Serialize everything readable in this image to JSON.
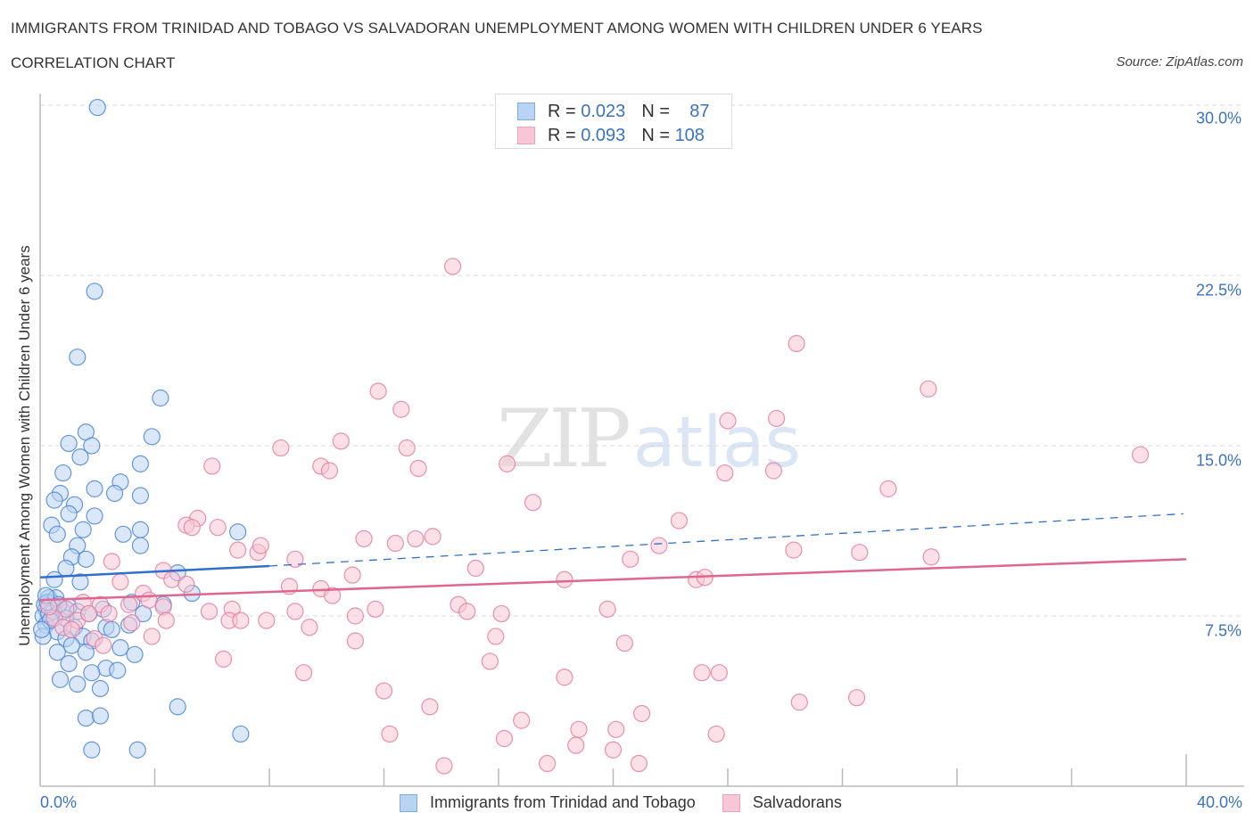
{
  "header": {
    "title": "IMMIGRANTS FROM TRINIDAD AND TOBAGO VS SALVADORAN UNEMPLOYMENT AMONG WOMEN WITH CHILDREN UNDER 6 YEARS",
    "subtitle": "CORRELATION CHART",
    "source": "Source: ZipAtlas.com"
  },
  "watermark": {
    "zip": "ZIP",
    "atlas": "atlas"
  },
  "legend_top": {
    "rows": [
      {
        "r_label": "R =",
        "r_value": "0.023",
        "n_label": "N =",
        "n_value": "87"
      },
      {
        "r_label": "R =",
        "r_value": "0.093",
        "n_label": "N =",
        "n_value": "108"
      }
    ]
  },
  "legend_bottom": {
    "items": [
      {
        "label": "Immigrants from Trinidad and Tobago"
      },
      {
        "label": "Salvadorans"
      }
    ]
  },
  "axes": {
    "y_label": "Unemployment Among Women with Children Under 6 years",
    "y_ticks": [
      "30.0%",
      "22.5%",
      "15.0%",
      "7.5%"
    ],
    "x_ticks": [
      "0.0%",
      "40.0%"
    ]
  },
  "colors": {
    "blue_fill": "#b9d3f3",
    "blue_stroke": "#4a86d8",
    "blue_line": "#2f6fd0",
    "pink_fill": "#f8c6d6",
    "pink_stroke": "#e57ea0",
    "pink_line": "#e06690",
    "tick_text": "#3b73c4",
    "grid": "#d8d8d8"
  },
  "chart_data": {
    "type": "scatter",
    "title": "IMMIGRANTS FROM TRINIDAD AND TOBAGO VS SALVADORAN UNEMPLOYMENT AMONG WOMEN WITH CHILDREN UNDER 6 YEARS",
    "subtitle": "CORRELATION CHART",
    "xlabel": "",
    "ylabel": "Unemployment Among Women with Children Under 6 years",
    "xlim": [
      0,
      40
    ],
    "ylim": [
      0,
      30
    ],
    "x_ticks": [
      "0.0%",
      "40.0%"
    ],
    "y_ticks": [
      "7.5%",
      "15.0%",
      "22.5%",
      "30.0%"
    ],
    "grid": true,
    "legend_position": "bottom",
    "series": [
      {
        "name": "Immigrants from Trinidad and Tobago",
        "R": 0.023,
        "N": 87,
        "trend": {
          "x0": 0,
          "y0": 9.2,
          "x1": 8,
          "y1": 9.7,
          "dashed_extension_to_x": 40,
          "dashed_end_y": 12.0
        },
        "points": [
          [
            2.0,
            29.9
          ],
          [
            1.9,
            21.8
          ],
          [
            1.3,
            18.9
          ],
          [
            4.2,
            17.1
          ],
          [
            3.9,
            15.4
          ],
          [
            1.6,
            15.6
          ],
          [
            1.0,
            15.1
          ],
          [
            1.8,
            15.0
          ],
          [
            1.4,
            14.5
          ],
          [
            3.5,
            14.2
          ],
          [
            0.8,
            13.8
          ],
          [
            2.8,
            13.4
          ],
          [
            0.7,
            12.9
          ],
          [
            1.9,
            13.1
          ],
          [
            2.6,
            12.9
          ],
          [
            3.5,
            12.8
          ],
          [
            0.5,
            12.6
          ],
          [
            1.2,
            12.4
          ],
          [
            1.0,
            12.0
          ],
          [
            1.9,
            11.9
          ],
          [
            0.4,
            11.5
          ],
          [
            0.6,
            11.1
          ],
          [
            1.5,
            11.3
          ],
          [
            3.5,
            11.3
          ],
          [
            2.9,
            11.1
          ],
          [
            6.9,
            11.2
          ],
          [
            1.3,
            10.6
          ],
          [
            3.5,
            10.6
          ],
          [
            1.1,
            10.1
          ],
          [
            1.6,
            10.0
          ],
          [
            0.9,
            9.6
          ],
          [
            4.8,
            9.4
          ],
          [
            0.5,
            9.1
          ],
          [
            1.4,
            9.0
          ],
          [
            5.3,
            8.5
          ],
          [
            0.3,
            8.3
          ],
          [
            0.4,
            8.1
          ],
          [
            0.2,
            7.8
          ],
          [
            0.5,
            7.9
          ],
          [
            0.8,
            7.7
          ],
          [
            1.0,
            7.9
          ],
          [
            1.3,
            7.7
          ],
          [
            0.1,
            7.5
          ],
          [
            0.4,
            7.4
          ],
          [
            0.9,
            7.4
          ],
          [
            1.7,
            7.6
          ],
          [
            2.2,
            7.8
          ],
          [
            3.2,
            8.1
          ],
          [
            3.6,
            7.6
          ],
          [
            4.3,
            8.0
          ],
          [
            0.2,
            7.1
          ],
          [
            0.6,
            6.8
          ],
          [
            1.2,
            7.0
          ],
          [
            2.3,
            7.0
          ],
          [
            3.1,
            7.1
          ],
          [
            0.1,
            6.6
          ],
          [
            0.9,
            6.5
          ],
          [
            1.5,
            6.6
          ],
          [
            2.5,
            6.9
          ],
          [
            1.1,
            6.2
          ],
          [
            1.8,
            6.4
          ],
          [
            2.8,
            6.1
          ],
          [
            0.6,
            5.9
          ],
          [
            1.6,
            5.9
          ],
          [
            3.3,
            5.8
          ],
          [
            1.0,
            5.4
          ],
          [
            2.3,
            5.2
          ],
          [
            1.8,
            5.0
          ],
          [
            2.7,
            5.1
          ],
          [
            0.7,
            4.7
          ],
          [
            1.3,
            4.5
          ],
          [
            2.1,
            4.3
          ],
          [
            4.8,
            3.5
          ],
          [
            1.6,
            3.0
          ],
          [
            2.1,
            3.1
          ],
          [
            7.0,
            2.3
          ],
          [
            1.8,
            1.6
          ],
          [
            3.4,
            1.6
          ],
          [
            0.15,
            8.0
          ],
          [
            0.3,
            7.6
          ],
          [
            0.45,
            7.7
          ],
          [
            0.25,
            8.1
          ],
          [
            0.35,
            7.3
          ],
          [
            0.55,
            8.3
          ],
          [
            0.65,
            8.0
          ],
          [
            0.2,
            8.4
          ],
          [
            0.05,
            6.9
          ]
        ]
      },
      {
        "name": "Salvadorans",
        "R": 0.093,
        "N": 108,
        "trend": {
          "x0": 0,
          "y0": 8.2,
          "x1": 40,
          "y1": 10.0
        },
        "points": [
          [
            14.4,
            22.9
          ],
          [
            26.4,
            19.5
          ],
          [
            31.0,
            17.5
          ],
          [
            11.8,
            17.4
          ],
          [
            12.6,
            16.6
          ],
          [
            24.0,
            16.1
          ],
          [
            25.7,
            16.2
          ],
          [
            8.4,
            14.9
          ],
          [
            10.5,
            15.2
          ],
          [
            12.8,
            14.9
          ],
          [
            6.0,
            14.1
          ],
          [
            9.8,
            14.1
          ],
          [
            10.1,
            13.9
          ],
          [
            13.2,
            14.0
          ],
          [
            16.3,
            14.2
          ],
          [
            23.9,
            13.8
          ],
          [
            25.6,
            13.9
          ],
          [
            38.4,
            14.6
          ],
          [
            29.6,
            13.1
          ],
          [
            17.2,
            12.5
          ],
          [
            5.5,
            11.8
          ],
          [
            5.1,
            11.5
          ],
          [
            5.3,
            11.4
          ],
          [
            6.2,
            11.4
          ],
          [
            22.3,
            11.7
          ],
          [
            11.3,
            10.9
          ],
          [
            12.4,
            10.7
          ],
          [
            13.1,
            10.9
          ],
          [
            13.7,
            11.0
          ],
          [
            21.6,
            10.6
          ],
          [
            6.9,
            10.4
          ],
          [
            7.6,
            10.3
          ],
          [
            7.7,
            10.6
          ],
          [
            8.9,
            10.0
          ],
          [
            20.6,
            10.0
          ],
          [
            26.3,
            10.4
          ],
          [
            28.6,
            10.3
          ],
          [
            31.1,
            10.1
          ],
          [
            2.5,
            9.9
          ],
          [
            4.3,
            9.5
          ],
          [
            4.6,
            9.1
          ],
          [
            10.9,
            9.3
          ],
          [
            15.2,
            9.6
          ],
          [
            18.3,
            9.1
          ],
          [
            22.9,
            9.1
          ],
          [
            23.2,
            9.2
          ],
          [
            2.8,
            9.0
          ],
          [
            3.6,
            8.5
          ],
          [
            5.1,
            8.9
          ],
          [
            8.7,
            8.8
          ],
          [
            9.8,
            8.7
          ],
          [
            10.2,
            8.4
          ],
          [
            3.1,
            8.0
          ],
          [
            3.8,
            8.2
          ],
          [
            1.5,
            8.1
          ],
          [
            2.1,
            8.0
          ],
          [
            4.3,
            7.9
          ],
          [
            5.9,
            7.7
          ],
          [
            6.7,
            7.8
          ],
          [
            8.9,
            7.7
          ],
          [
            11.0,
            7.5
          ],
          [
            11.7,
            7.8
          ],
          [
            14.6,
            8.0
          ],
          [
            14.9,
            7.7
          ],
          [
            16.1,
            7.6
          ],
          [
            19.8,
            7.8
          ],
          [
            0.9,
            7.8
          ],
          [
            1.3,
            7.3
          ],
          [
            1.7,
            7.6
          ],
          [
            2.4,
            7.6
          ],
          [
            4.4,
            7.3
          ],
          [
            6.6,
            7.3
          ],
          [
            7.0,
            7.3
          ],
          [
            7.9,
            7.3
          ],
          [
            9.4,
            7.0
          ],
          [
            3.2,
            7.2
          ],
          [
            0.5,
            7.4
          ],
          [
            0.8,
            7.0
          ],
          [
            1.1,
            6.9
          ],
          [
            1.9,
            6.5
          ],
          [
            2.2,
            6.2
          ],
          [
            3.9,
            6.6
          ],
          [
            11.0,
            6.4
          ],
          [
            15.9,
            6.6
          ],
          [
            20.4,
            6.3
          ],
          [
            6.4,
            5.6
          ],
          [
            15.7,
            5.5
          ],
          [
            9.2,
            5.0
          ],
          [
            23.1,
            5.0
          ],
          [
            23.7,
            5.0
          ],
          [
            18.3,
            4.8
          ],
          [
            12.0,
            4.2
          ],
          [
            28.5,
            3.9
          ],
          [
            26.5,
            3.7
          ],
          [
            13.6,
            3.5
          ],
          [
            16.8,
            2.9
          ],
          [
            21.0,
            3.2
          ],
          [
            18.8,
            2.5
          ],
          [
            20.1,
            2.5
          ],
          [
            12.2,
            2.3
          ],
          [
            16.2,
            2.1
          ],
          [
            23.6,
            2.3
          ],
          [
            18.7,
            1.8
          ],
          [
            20.0,
            1.6
          ],
          [
            14.1,
            0.9
          ],
          [
            17.7,
            1.0
          ],
          [
            20.9,
            1.0
          ],
          [
            0.3,
            7.9
          ]
        ]
      }
    ]
  }
}
